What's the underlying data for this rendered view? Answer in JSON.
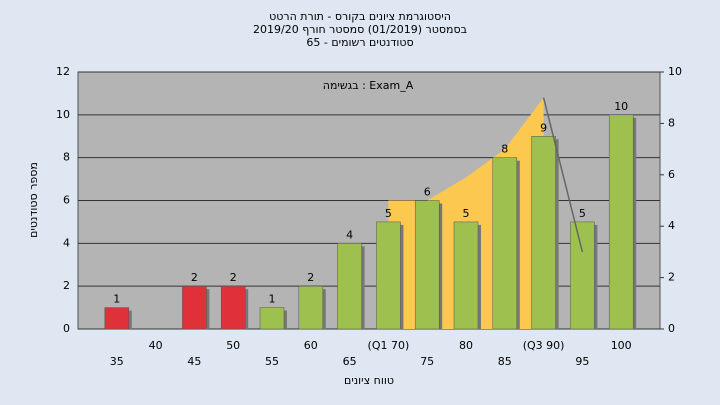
{
  "chart_data": {
    "type": "bar",
    "title": "היסטוגרמת ציונים בקורס - תורת הרטט",
    "subtitle": "בסמסטר  (01/2019)  סמסטר חורף 2019/20",
    "subtitle2": "65 - סטודנטים רשומים",
    "annotation": "בגשימה : Exam_A",
    "x_label": "טווח ציונים",
    "y_label": "מספר סטודנטים",
    "categories": [
      "35",
      "40",
      "45",
      "50",
      "55",
      "60",
      "65",
      "(Q1 70)",
      "75",
      "80",
      "85",
      "(Q3 90)",
      "95",
      "100"
    ],
    "values": [
      1,
      0,
      2,
      2,
      1,
      2,
      4,
      5,
      6,
      5,
      8,
      9,
      5,
      10
    ],
    "colors": [
      "#e0303a",
      "#e0303a",
      "#e0303a",
      "#e0303a",
      "#9dc04f",
      "#9dc04f",
      "#9dc04f",
      "#9dc04f",
      "#9dc04f",
      "#9dc04f",
      "#9dc04f",
      "#9dc04f",
      "#9dc04f",
      "#9dc04f"
    ],
    "overlay": {
      "color": "#fcc850",
      "axis": "y2",
      "values": [
        null,
        null,
        null,
        null,
        null,
        null,
        null,
        5,
        5,
        5.9,
        7,
        9,
        null,
        null
      ]
    },
    "trend_line": {
      "color": "#666666",
      "axis": "y2",
      "values": [
        null,
        null,
        null,
        null,
        null,
        null,
        null,
        null,
        null,
        null,
        null,
        9,
        3,
        null
      ]
    },
    "ylim": [
      0,
      12
    ],
    "yticks": [
      0,
      2,
      4,
      6,
      8,
      10,
      12
    ],
    "y2lim": [
      0,
      10
    ],
    "y2ticks": [
      0,
      2,
      4,
      6,
      8,
      10
    ],
    "grid": true
  }
}
